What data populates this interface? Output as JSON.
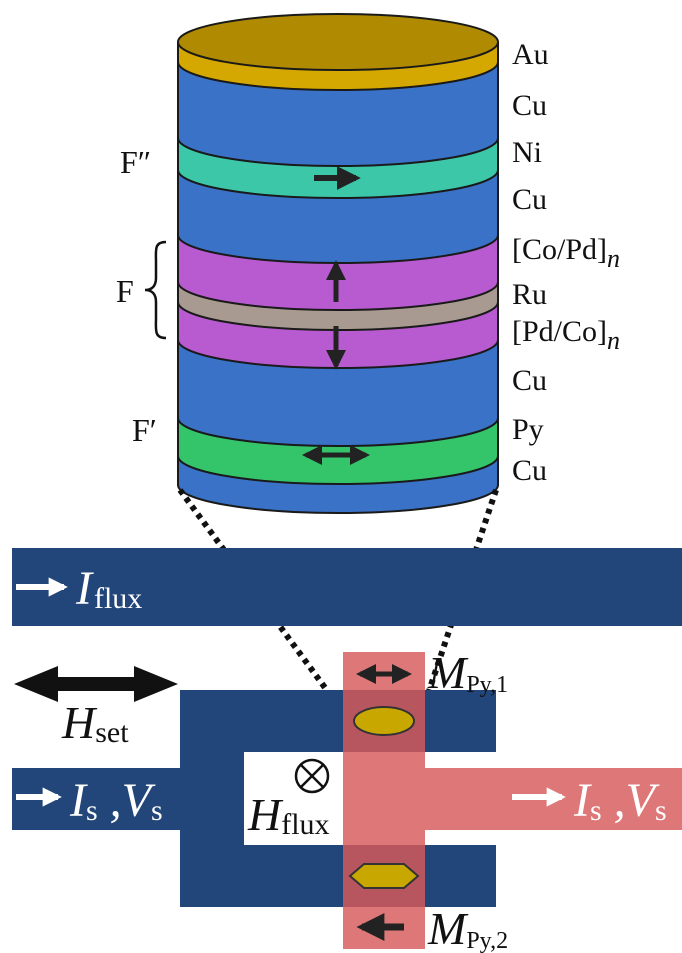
{
  "colors": {
    "au": "#d4a800",
    "au_top": "#b08a00",
    "cu": "#3a72c8",
    "ni": "#3cc8a8",
    "co_pd": "#b85ad0",
    "ru": "#a89a90",
    "py": "#34c46a",
    "navy": "#22467a",
    "pink": "#de7878",
    "pink_dark": "#b85660",
    "ellipse": "#c8a800",
    "arrow": "#222222"
  },
  "layers": {
    "au": "Au",
    "cu1": "Cu",
    "ni": "Ni",
    "cu2": "Cu",
    "copd": "[Co/Pd]",
    "copd_sub": "n",
    "ru": "Ru",
    "pdco": "[Pd/Co]",
    "pdco_sub": "n",
    "cu3": "Cu",
    "py": "Py",
    "cu4": "Cu"
  },
  "groups": {
    "f_double_prime": "F″",
    "f": "F",
    "f_prime": "F′"
  },
  "device": {
    "i_flux_main": "I",
    "i_flux_sub": "flux",
    "h_set_main": "H",
    "h_set_sub": "set",
    "is_left_main": "I",
    "is_left_sub": "s",
    "vs_left_main": "V",
    "vs_left_sub": "s",
    "is_right_main": "I",
    "is_right_sub": "s",
    "vs_right_main": "V",
    "vs_right_sub": "s",
    "h_flux_main": "H",
    "h_flux_sub": "flux",
    "m_py1_main": "M",
    "m_py1_sub": "Py,1",
    "m_py2_main": "M",
    "m_py2_sub": "Py,2"
  }
}
